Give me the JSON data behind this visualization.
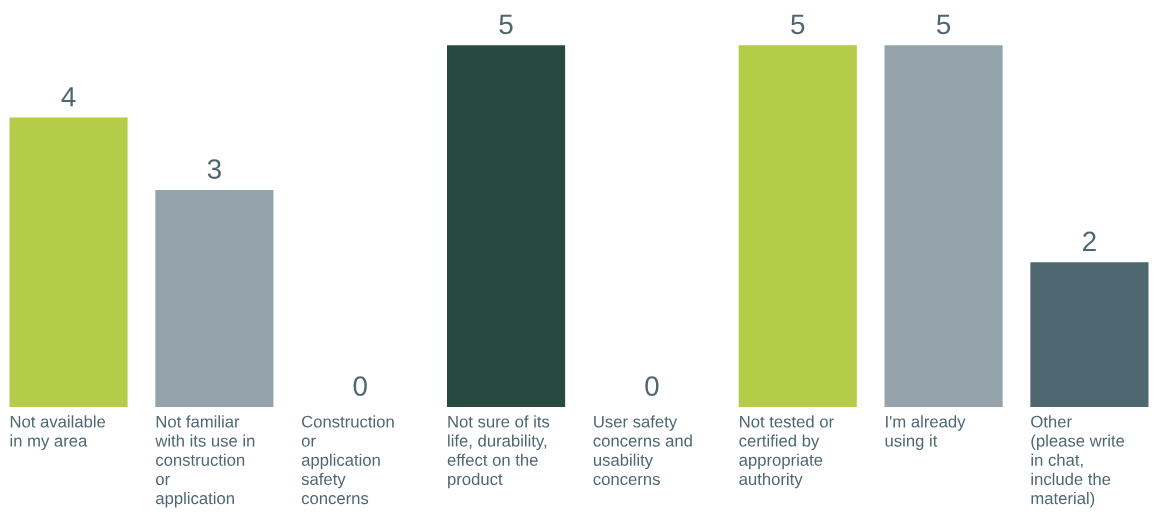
{
  "chart_data": {
    "type": "bar",
    "categories": [
      "Not available\nin my area",
      "Not familiar\nwith its use in\nconstruction\nor\napplication",
      "Construction\nor\napplication\nsafety\nconcerns",
      "Not sure of its\nlife, durability,\neffect on the\nproduct",
      "User safety\nconcerns and\nusability\nconcerns",
      "Not tested or\ncertified by\nappropriate\nauthority",
      "I'm already\nusing it",
      "Other\n(please write\nin chat,\ninclude the\nmaterial)"
    ],
    "values": [
      4,
      3,
      0,
      5,
      0,
      5,
      5,
      2
    ],
    "colors": [
      "#b5cc48",
      "#94a4aa",
      "#94a4aa",
      "#264a3f",
      "#94a4aa",
      "#b5cc48",
      "#94a4aa",
      "#4d6670"
    ],
    "data_labels": true
  }
}
